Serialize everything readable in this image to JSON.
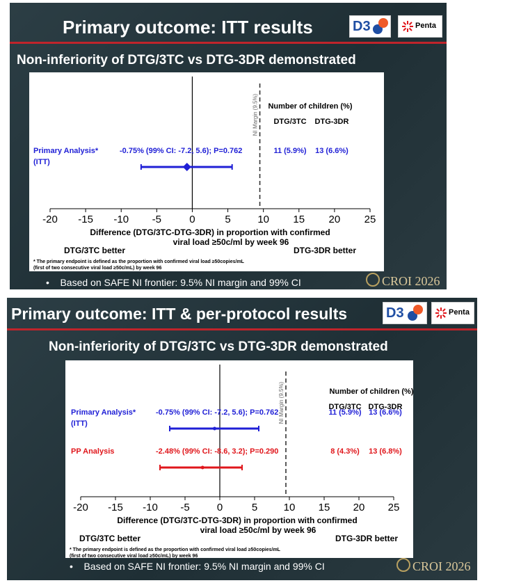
{
  "slides": [
    {
      "title": "Primary outcome: ITT results",
      "subtitle": "Non-inferiority of DTG/3TC vs DTG-3DR demonstrated",
      "bullet": "Based on SAFE NI frontier: 9.5% NI margin and 99% CI",
      "logos": {
        "d3": "D3",
        "penta": "Penta"
      },
      "croi": "CROI 2026",
      "chart": {
        "margin_label": "NI Margin (9.5%)",
        "children_header": "Number of children (%)",
        "group_headers": [
          "DTG/3TC",
          "DTG-3DR"
        ],
        "xlabel_line1": "Difference (DTG/3TC-DTG-3DR) in proportion with confirmed",
        "xlabel_line2": "viral load ≥50c/ml by week 96",
        "left_note": "DTG/3TC better",
        "right_note": "DTG-3DR better",
        "footnote_line1": "* The primary endpoint is defined as the proportion with confirmed viral load ≥50copies/mL",
        "footnote_line2": "(first of two consecutive viral load ≥50c/mL) by week 96"
      }
    },
    {
      "title": "Primary outcome: ITT & per-protocol results",
      "subtitle": "Non-inferiority of DTG/3TC vs DTG-3DR demonstrated",
      "bullet": "Based on SAFE NI frontier: 9.5% NI margin and 99% CI",
      "logos": {
        "d3": "D3",
        "penta": "Penta"
      },
      "croi": "CROI 2026",
      "chart": {
        "margin_label": "NI Margin (9.5%)",
        "children_header": "Number of children (%)",
        "group_headers": [
          "DTG/3TC",
          "DTG-3DR"
        ],
        "xlabel_line1": "Difference (DTG/3TC-DTG-3DR) in proportion with confirmed",
        "xlabel_line2": "viral load ≥50c/ml by week 96",
        "left_note": "DTG/3TC better",
        "right_note": "DTG-3DR better",
        "footnote_line1": "* The primary endpoint is defined as the proportion with confirmed viral load ≥50copies/mL",
        "footnote_line2": "(first of two consecutive viral load ≥50c/mL) by week 96"
      }
    }
  ],
  "chart_data": [
    {
      "type": "forest",
      "xlim": [
        -20,
        25
      ],
      "xticks": [
        -20,
        -15,
        -10,
        -5,
        0,
        5,
        10,
        15,
        20,
        25
      ],
      "ni_margin": 9.5,
      "rows": [
        {
          "label_line1": "Primary Analysis*",
          "label_line2": "(ITT)",
          "estimate": -0.75,
          "ci": [
            -7.2,
            5.6
          ],
          "text": "-0.75% (99% CI: -7.2, 5.6); P=0.762",
          "dtg3tc": "11 (5.9%)",
          "dtg3dr": "13 (6.6%)",
          "color": "#1f1fd6"
        }
      ]
    },
    {
      "type": "forest",
      "xlim": [
        -20,
        25
      ],
      "xticks": [
        -20,
        -15,
        -10,
        -5,
        0,
        5,
        10,
        15,
        20,
        25
      ],
      "ni_margin": 9.5,
      "rows": [
        {
          "label_line1": "Primary Analysis*",
          "label_line2": "(ITT)",
          "estimate": -0.75,
          "ci": [
            -7.2,
            5.6
          ],
          "text": "-0.75% (99% CI: -7.2, 5.6); P=0.762",
          "dtg3tc": "11 (5.9%)",
          "dtg3dr": "13 (6.6%)",
          "color": "#1f1fd6"
        },
        {
          "label_line1": "PP Analysis",
          "label_line2": "",
          "estimate": -2.48,
          "ci": [
            -8.6,
            3.2
          ],
          "text": "-2.48% (99% CI: -8.6, 3.2); P=0.290",
          "dtg3tc": "8 (4.3%)",
          "dtg3dr": "13 (6.8%)",
          "color": "#e0161b"
        }
      ]
    }
  ]
}
